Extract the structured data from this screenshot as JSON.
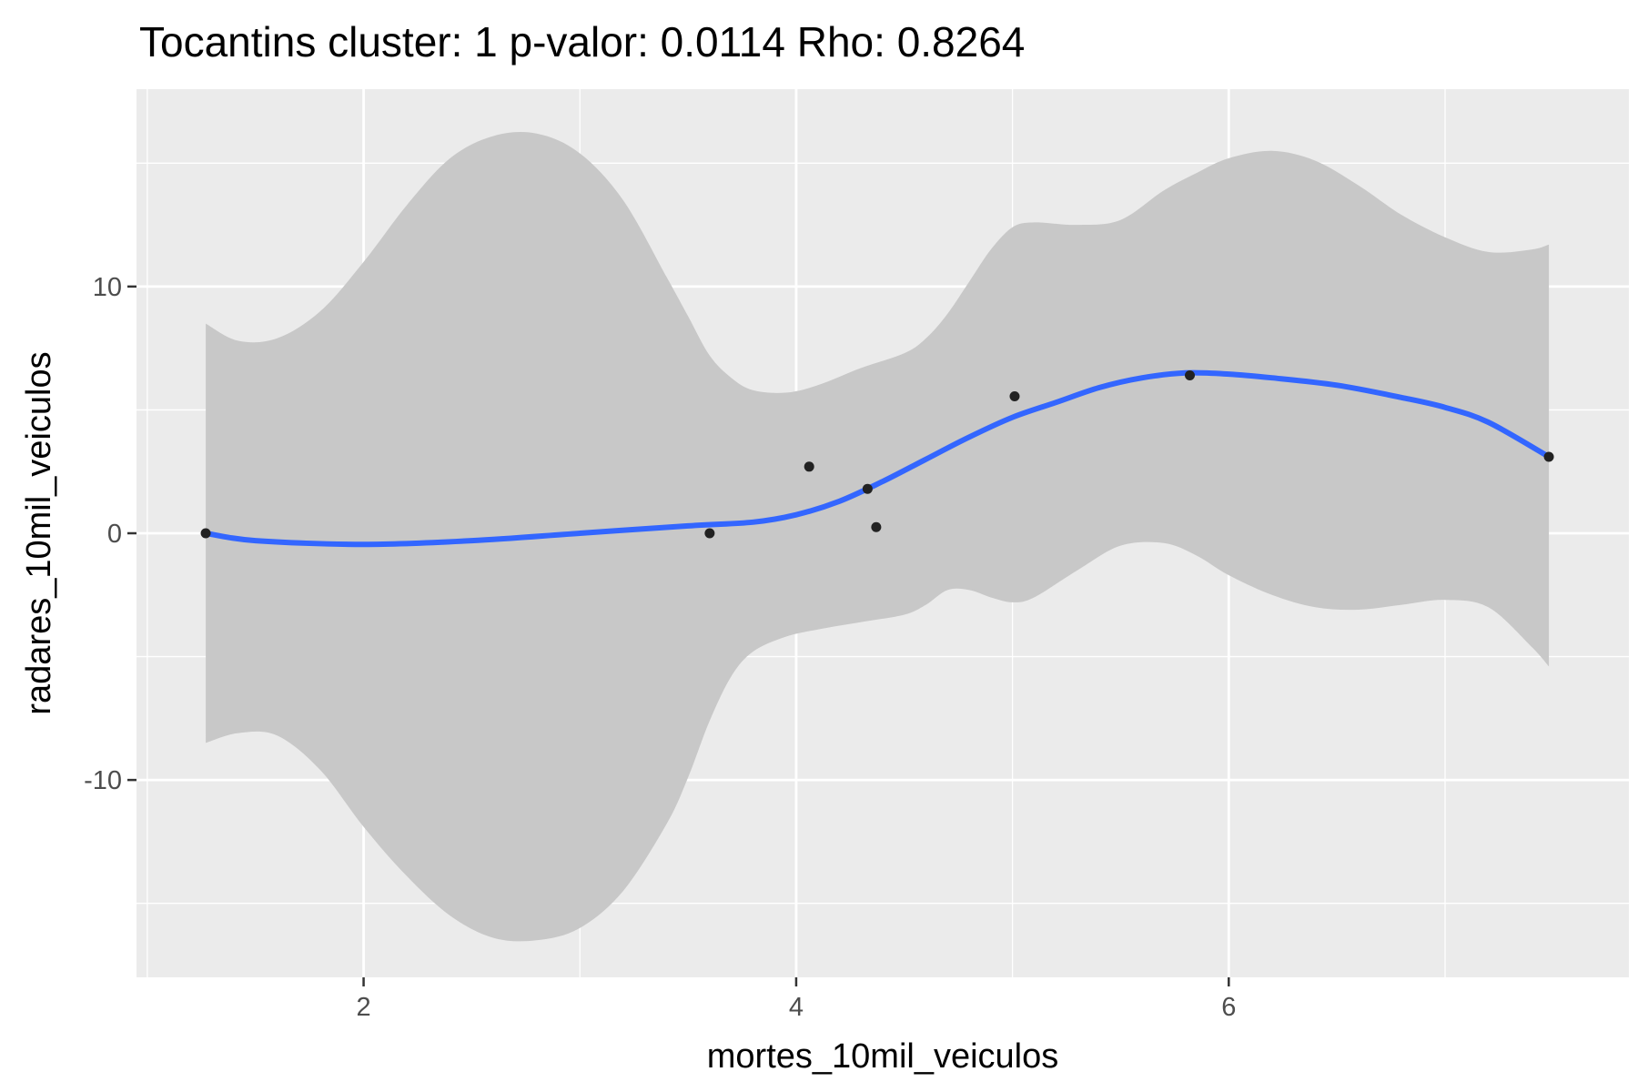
{
  "chart_data": {
    "type": "scatter",
    "title": "Tocantins cluster: 1 p-valor: 0.0114 Rho: 0.8264",
    "xlabel": "mortes_10mil_veiculos",
    "ylabel": "radares_10mil_veiculos",
    "xlim": [
      0.95,
      7.85
    ],
    "ylim": [
      -18,
      18
    ],
    "x_ticks": [
      2,
      4,
      6
    ],
    "x_tick_labels": [
      "2",
      "4",
      "6"
    ],
    "y_ticks": [
      -10,
      0,
      10
    ],
    "y_tick_labels": [
      "-10",
      "0",
      "10"
    ],
    "x_minor_ticks": [
      1,
      3,
      5,
      7
    ],
    "y_minor_ticks": [
      -15,
      -5,
      5,
      15
    ],
    "grid": true,
    "points": {
      "x": [
        1.27,
        3.6,
        4.06,
        4.33,
        4.37,
        5.01,
        5.82,
        7.48
      ],
      "y": [
        0.0,
        0.0,
        2.7,
        1.8,
        0.25,
        5.55,
        6.4,
        3.1
      ]
    },
    "smooth": {
      "x": [
        1.27,
        1.5,
        2.0,
        2.5,
        3.0,
        3.5,
        3.8,
        4.0,
        4.2,
        4.4,
        4.6,
        4.8,
        5.0,
        5.2,
        5.4,
        5.6,
        5.8,
        6.0,
        6.2,
        6.5,
        6.8,
        7.0,
        7.2,
        7.48
      ],
      "y": [
        0.0,
        -0.3,
        -0.45,
        -0.3,
        0.0,
        0.3,
        0.45,
        0.75,
        1.3,
        2.1,
        3.0,
        3.9,
        4.7,
        5.3,
        5.9,
        6.3,
        6.5,
        6.45,
        6.3,
        6.0,
        5.5,
        5.1,
        4.5,
        3.1
      ]
    },
    "ribbon": {
      "x": [
        1.27,
        1.42,
        1.6,
        1.8,
        2.0,
        2.2,
        2.4,
        2.6,
        2.8,
        3.0,
        3.2,
        3.4,
        3.5,
        3.6,
        3.7,
        3.8,
        3.95,
        4.1,
        4.3,
        4.5,
        4.6,
        4.7,
        4.8,
        4.9,
        5.0,
        5.1,
        5.3,
        5.5,
        5.7,
        5.85,
        6.0,
        6.2,
        6.4,
        6.6,
        6.8,
        7.0,
        7.2,
        7.4,
        7.48
      ],
      "ymax": [
        8.5,
        7.8,
        7.9,
        9.0,
        11.0,
        13.3,
        15.2,
        16.1,
        16.2,
        15.4,
        13.5,
        10.4,
        8.8,
        7.2,
        6.3,
        5.8,
        5.7,
        6.0,
        6.7,
        7.3,
        7.9,
        8.9,
        10.2,
        11.5,
        12.4,
        12.6,
        12.5,
        12.7,
        13.9,
        14.6,
        15.2,
        15.5,
        15.1,
        14.1,
        12.9,
        12.0,
        11.4,
        11.5,
        11.7
      ],
      "ymin": [
        -8.5,
        -8.1,
        -8.2,
        -9.6,
        -11.9,
        -13.9,
        -15.5,
        -16.4,
        -16.5,
        -16.0,
        -14.5,
        -11.8,
        -9.9,
        -7.6,
        -5.8,
        -4.8,
        -4.2,
        -3.9,
        -3.6,
        -3.3,
        -2.9,
        -2.3,
        -2.3,
        -2.6,
        -2.8,
        -2.6,
        -1.5,
        -0.5,
        -0.4,
        -0.9,
        -1.7,
        -2.5,
        -3.0,
        -3.1,
        -2.9,
        -2.7,
        -3.0,
        -4.6,
        -5.4
      ]
    },
    "colors": {
      "panel": "#ebebeb",
      "grid": "#ffffff",
      "ribbon": "#c8c8c8",
      "line": "#3366ff",
      "point": "#222222"
    }
  }
}
